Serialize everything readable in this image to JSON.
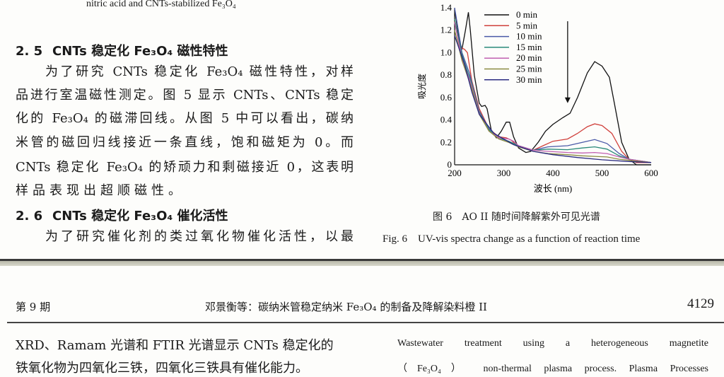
{
  "top_caption": "nitric acid and CNTs-stabilized Fe₃O₄",
  "section_2_5": {
    "number": "2. 5",
    "title": "CNTs 稳定化 Fe₃O₄ 磁性特性"
  },
  "paragraph_2_5": [
    "为了研究 CNTs 稳定化 Fe₃O₄ 磁性特性，对样",
    "品进行室温磁性测定。图 5 显示 CNTs、CNTs 稳定",
    "化的 Fe₃O₄ 的磁滞回线。从图 5 中可以看出，碳纳",
    "米管的磁回归线接近一条直线，饱和磁矩为 0。而",
    "CNTs 稳定化 Fe₃O₄ 的矫顽力和剩磁接近 0，这表明",
    "样品表现出超顺磁性。"
  ],
  "section_2_6": {
    "number": "2. 6",
    "title": "CNTs 稳定化 Fe₃O₄ 催化活性"
  },
  "paragraph_2_6": [
    "为了研究催化剂的类过氧化物催化活性，以最"
  ],
  "figure": {
    "caption_cn": "图 6　AO II 随时间降解紫外可见光谱",
    "caption_en": "Fig. 6　UV-vis spectra change as a function of reaction time"
  },
  "chart_data": {
    "type": "line",
    "xlabel": "波长 (nm)",
    "ylabel": "吸光度",
    "xlim": [
      200,
      600
    ],
    "ylim": [
      0,
      1.4
    ],
    "xticks": [
      "200",
      "300",
      "400",
      "500",
      "600"
    ],
    "yticks": [
      "0",
      "0.2",
      "0.4",
      "0.6",
      "0.8",
      "1.0",
      "1.2",
      "1.4"
    ],
    "legend_position": "top-left",
    "arrow": {
      "x": 430,
      "from": 1.28,
      "to": 0.55
    },
    "series": [
      {
        "name": "0 min",
        "color": "#111111",
        "points": [
          [
            200,
            1.38
          ],
          [
            210,
            1.1
          ],
          [
            215,
            1.03
          ],
          [
            222,
            1.2
          ],
          [
            228,
            1.36
          ],
          [
            232,
            1.2
          ],
          [
            240,
            0.8
          ],
          [
            250,
            0.55
          ],
          [
            255,
            0.52
          ],
          [
            262,
            0.53
          ],
          [
            266,
            0.5
          ],
          [
            275,
            0.3
          ],
          [
            285,
            0.24
          ],
          [
            295,
            0.3
          ],
          [
            305,
            0.38
          ],
          [
            312,
            0.38
          ],
          [
            320,
            0.25
          ],
          [
            330,
            0.15
          ],
          [
            345,
            0.11
          ],
          [
            355,
            0.12
          ],
          [
            370,
            0.2
          ],
          [
            385,
            0.3
          ],
          [
            400,
            0.36
          ],
          [
            420,
            0.42
          ],
          [
            435,
            0.46
          ],
          [
            450,
            0.6
          ],
          [
            470,
            0.82
          ],
          [
            485,
            0.92
          ],
          [
            500,
            0.88
          ],
          [
            515,
            0.78
          ],
          [
            525,
            0.55
          ],
          [
            540,
            0.2
          ],
          [
            555,
            0.05
          ],
          [
            570,
            0.0
          ],
          [
            600,
            0.0
          ]
        ]
      },
      {
        "name": "5 min",
        "color": "#d0413c",
        "points": [
          [
            200,
            1.28
          ],
          [
            210,
            1.05
          ],
          [
            220,
            1.03
          ],
          [
            226,
            1.0
          ],
          [
            235,
            0.75
          ],
          [
            250,
            0.5
          ],
          [
            270,
            0.32
          ],
          [
            290,
            0.25
          ],
          [
            305,
            0.24
          ],
          [
            315,
            0.22
          ],
          [
            330,
            0.16
          ],
          [
            360,
            0.13
          ],
          [
            380,
            0.17
          ],
          [
            400,
            0.21
          ],
          [
            430,
            0.23
          ],
          [
            450,
            0.28
          ],
          [
            470,
            0.34
          ],
          [
            485,
            0.365
          ],
          [
            500,
            0.35
          ],
          [
            520,
            0.28
          ],
          [
            540,
            0.12
          ],
          [
            555,
            0.05
          ],
          [
            570,
            0.02
          ],
          [
            600,
            0.02
          ]
        ]
      },
      {
        "name": "10 min",
        "color": "#4a5aa8",
        "points": [
          [
            200,
            1.4
          ],
          [
            215,
            1.0
          ],
          [
            230,
            0.82
          ],
          [
            250,
            0.48
          ],
          [
            270,
            0.32
          ],
          [
            290,
            0.24
          ],
          [
            310,
            0.21
          ],
          [
            330,
            0.17
          ],
          [
            360,
            0.13
          ],
          [
            390,
            0.16
          ],
          [
            430,
            0.17
          ],
          [
            460,
            0.2
          ],
          [
            485,
            0.225
          ],
          [
            510,
            0.19
          ],
          [
            535,
            0.1
          ],
          [
            555,
            0.05
          ],
          [
            600,
            0.02
          ]
        ]
      },
      {
        "name": "15 min",
        "color": "#2a8a7a",
        "points": [
          [
            200,
            1.3
          ],
          [
            215,
            0.98
          ],
          [
            235,
            0.72
          ],
          [
            250,
            0.47
          ],
          [
            270,
            0.31
          ],
          [
            290,
            0.24
          ],
          [
            310,
            0.21
          ],
          [
            330,
            0.17
          ],
          [
            360,
            0.13
          ],
          [
            390,
            0.14
          ],
          [
            430,
            0.135
          ],
          [
            460,
            0.15
          ],
          [
            485,
            0.16
          ],
          [
            510,
            0.14
          ],
          [
            535,
            0.08
          ],
          [
            555,
            0.05
          ],
          [
            600,
            0.02
          ]
        ]
      },
      {
        "name": "20 min",
        "color": "#c060b0",
        "points": [
          [
            200,
            1.27
          ],
          [
            215,
            0.95
          ],
          [
            235,
            0.7
          ],
          [
            250,
            0.46
          ],
          [
            270,
            0.3
          ],
          [
            290,
            0.24
          ],
          [
            310,
            0.23
          ],
          [
            320,
            0.21
          ],
          [
            330,
            0.17
          ],
          [
            360,
            0.13
          ],
          [
            390,
            0.12
          ],
          [
            430,
            0.11
          ],
          [
            460,
            0.105
          ],
          [
            485,
            0.11
          ],
          [
            510,
            0.1
          ],
          [
            535,
            0.07
          ],
          [
            555,
            0.05
          ],
          [
            600,
            0.02
          ]
        ]
      },
      {
        "name": "25 min",
        "color": "#8a8a40",
        "points": [
          [
            200,
            1.2
          ],
          [
            215,
            0.93
          ],
          [
            235,
            0.68
          ],
          [
            250,
            0.45
          ],
          [
            270,
            0.3
          ],
          [
            290,
            0.23
          ],
          [
            310,
            0.2
          ],
          [
            330,
            0.16
          ],
          [
            360,
            0.12
          ],
          [
            390,
            0.1
          ],
          [
            430,
            0.09
          ],
          [
            460,
            0.08
          ],
          [
            485,
            0.075
          ],
          [
            510,
            0.07
          ],
          [
            535,
            0.05
          ],
          [
            555,
            0.04
          ],
          [
            600,
            0.02
          ]
        ]
      },
      {
        "name": "30 min",
        "color": "#2a2a80",
        "points": [
          [
            200,
            1.15
          ],
          [
            220,
            0.9
          ],
          [
            235,
            0.65
          ],
          [
            250,
            0.45
          ],
          [
            280,
            0.28
          ],
          [
            320,
            0.18
          ],
          [
            360,
            0.12
          ],
          [
            400,
            0.09
          ],
          [
            450,
            0.065
          ],
          [
            500,
            0.045
          ],
          [
            550,
            0.03
          ],
          [
            600,
            0.02
          ]
        ]
      }
    ]
  },
  "running_header": {
    "issue": "第 9 期",
    "title": "邓景衡等：碳纳米管稳定纳米 Fe₃O₄ 的制备及降解染料橙 II",
    "page": "4129"
  },
  "bottom_left": [
    "XRD、Ramam 光谱和 FTIR 光谱显示 CNTs 稳定化的",
    "铁氧化物为四氧化三铁，四氧化三铁具有催化能力。"
  ],
  "bottom_right": [
    "Wastewater treatment using a heterogeneous magnetite",
    "（Fe₃O₄） non-thermal plasma process. Plasma Processes"
  ]
}
